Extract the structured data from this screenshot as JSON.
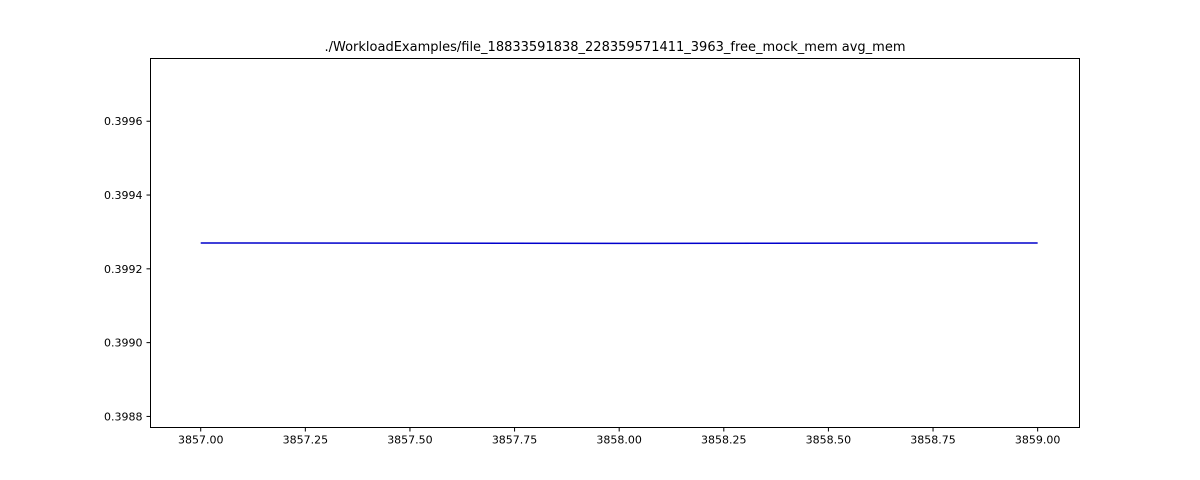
{
  "chart_data": {
    "type": "line",
    "title": "./WorkloadExamples/file_18833591838_228359571411_3963_free_mock_mem avg_mem",
    "xlabel": "",
    "ylabel": "",
    "xlim": [
      3856.88,
      3859.1
    ],
    "ylim": [
      0.39877,
      0.39977
    ],
    "grid": false,
    "x_ticks": [
      {
        "value": 3857.0,
        "label": "3857.00"
      },
      {
        "value": 3857.25,
        "label": "3857.25"
      },
      {
        "value": 3857.5,
        "label": "3857.50"
      },
      {
        "value": 3857.75,
        "label": "3857.75"
      },
      {
        "value": 3858.0,
        "label": "3858.00"
      },
      {
        "value": 3858.25,
        "label": "3858.25"
      },
      {
        "value": 3858.5,
        "label": "3858.50"
      },
      {
        "value": 3858.75,
        "label": "3858.75"
      },
      {
        "value": 3859.0,
        "label": "3859.00"
      }
    ],
    "y_ticks": [
      {
        "value": 0.3988,
        "label": "0.3988"
      },
      {
        "value": 0.399,
        "label": "0.3990"
      },
      {
        "value": 0.3992,
        "label": "0.3992"
      },
      {
        "value": 0.3994,
        "label": "0.3994"
      },
      {
        "value": 0.3996,
        "label": "0.3996"
      }
    ],
    "series": [
      {
        "color": "#0000cc",
        "x": [
          3857.0,
          3858.0,
          3859.0
        ],
        "y": [
          0.39927,
          0.399269,
          0.39927
        ]
      }
    ]
  }
}
